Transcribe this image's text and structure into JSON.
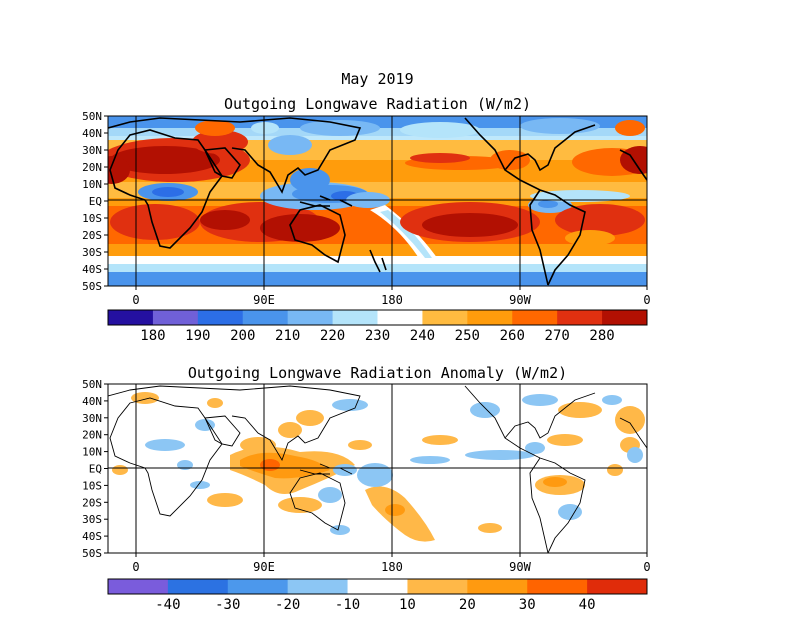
{
  "header": {
    "date_title": "May 2019"
  },
  "chart_data": [
    {
      "type": "heatmap",
      "title": "Outgoing Longwave Radiation (W/m2)",
      "lat_labels": [
        "50N",
        "40N",
        "30N",
        "20N",
        "10N",
        "EQ",
        "10S",
        "20S",
        "30S",
        "40S",
        "50S"
      ],
      "lon_labels": [
        "0",
        "90E",
        "180",
        "90W",
        "0"
      ],
      "ylim": [
        -50,
        50
      ],
      "xlim": [
        -20,
        360
      ],
      "colorbar": {
        "colors": [
          "#2410a0",
          "#7060d8",
          "#2c6ee6",
          "#4a94ec",
          "#78b8f4",
          "#b4e4fa",
          "#ffffff",
          "#ffbb40",
          "#ff9c0c",
          "#ff6800",
          "#e03010",
          "#b21002"
        ],
        "labels": [
          "180",
          "190",
          "200",
          "210",
          "220",
          "230",
          "240",
          "250",
          "260",
          "270",
          "280"
        ]
      },
      "features": [
        {
          "name": "north-africa-arabia-high",
          "lon": [
            -18,
            85
          ],
          "lat": [
            12,
            34
          ],
          "level": 11
        },
        {
          "name": "mexico-gulf-atlantic-high",
          "lon": [
            255,
            345
          ],
          "lat": [
            14,
            32
          ],
          "level": 9
        },
        {
          "name": "south-indian-ocean-high",
          "lon": [
            40,
            150
          ],
          "lat": [
            -30,
            -8
          ],
          "level": 11
        },
        {
          "name": "southeast-pacific-high",
          "lon": [
            215,
            290
          ],
          "lat": [
            -25,
            -5
          ],
          "level": 11
        },
        {
          "name": "warm-pool-convection",
          "lon": [
            90,
            160
          ],
          "lat": [
            -5,
            15
          ],
          "level": 2
        },
        {
          "name": "itcz-atlantic",
          "lon": [
            300,
            360
          ],
          "lat": [
            0,
            8
          ],
          "level": 4
        },
        {
          "name": "spcz",
          "lon": [
            155,
            200
          ],
          "lat": [
            -25,
            -5
          ],
          "level": 5
        }
      ]
    },
    {
      "type": "heatmap",
      "title": "Outgoing Longwave Radiation Anomaly (W/m2)",
      "lat_labels": [
        "50N",
        "40N",
        "30N",
        "20N",
        "10N",
        "EQ",
        "10S",
        "20S",
        "30S",
        "40S",
        "50S"
      ],
      "lon_labels": [
        "0",
        "90E",
        "180",
        "90W",
        "0"
      ],
      "ylim": [
        -50,
        50
      ],
      "xlim": [
        -20,
        360
      ],
      "colorbar": {
        "colors": [
          "#7a5cdc",
          "#2c72e2",
          "#4c98ec",
          "#8cc6f4",
          "#ffffff",
          "#ffb848",
          "#ff9a10",
          "#ff6400",
          "#e02c0a"
        ],
        "labels": [
          "-40",
          "-30",
          "-20",
          "-10",
          "10",
          "20",
          "30",
          "40"
        ]
      },
      "features": [
        {
          "name": "maritime-continent-positive",
          "lon": [
            70,
            160
          ],
          "lat": [
            -15,
            25
          ],
          "value": 20
        },
        {
          "name": "australia-positive",
          "lon": [
            115,
            195
          ],
          "lat": [
            -40,
            -15
          ],
          "value": 15
        },
        {
          "name": "central-pacific-negative",
          "lon": [
            150,
            205
          ],
          "lat": [
            -10,
            5
          ],
          "value": -15
        },
        {
          "name": "north-atlantic-positive",
          "lon": [
            280,
            350
          ],
          "lat": [
            25,
            40
          ],
          "value": 12
        },
        {
          "name": "south-america-positive",
          "lon": [
            280,
            330
          ],
          "lat": [
            -10,
            0
          ],
          "value": 12
        }
      ]
    }
  ]
}
